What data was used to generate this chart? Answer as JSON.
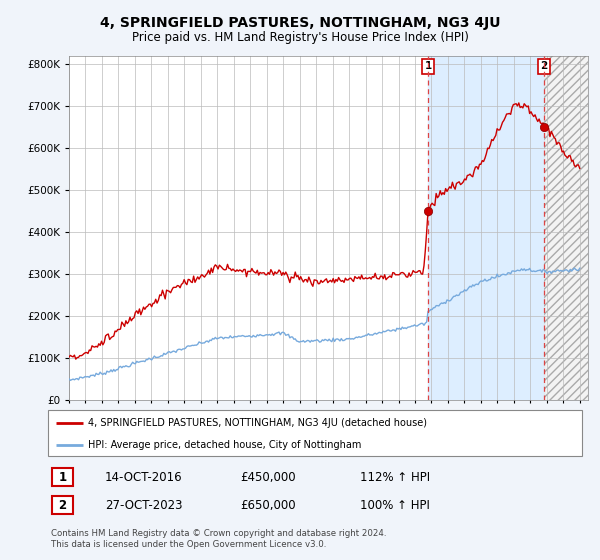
{
  "title": "4, SPRINGFIELD PASTURES, NOTTINGHAM, NG3 4JU",
  "subtitle": "Price paid vs. HM Land Registry's House Price Index (HPI)",
  "ylabel_ticks": [
    "£0",
    "£100K",
    "£200K",
    "£300K",
    "£400K",
    "£500K",
    "£600K",
    "£700K",
    "£800K"
  ],
  "ytick_values": [
    0,
    100000,
    200000,
    300000,
    400000,
    500000,
    600000,
    700000,
    800000
  ],
  "ylim": [
    0,
    820000
  ],
  "xlim_start": 1995.0,
  "xlim_end": 2026.5,
  "red_line_color": "#cc0000",
  "blue_line_color": "#77aadd",
  "vertical_line_color": "#dd4444",
  "shade_between_color": "#ddeeff",
  "marker1_date": 2016.79,
  "marker1_price": 450000,
  "marker2_date": 2023.83,
  "marker2_price": 650000,
  "legend_label_red": "4, SPRINGFIELD PASTURES, NOTTINGHAM, NG3 4JU (detached house)",
  "legend_label_blue": "HPI: Average price, detached house, City of Nottingham",
  "annotation1_date": "14-OCT-2016",
  "annotation1_price": "£450,000",
  "annotation1_hpi": "112% ↑ HPI",
  "annotation2_date": "27-OCT-2023",
  "annotation2_price": "£650,000",
  "annotation2_hpi": "100% ↑ HPI",
  "footnote": "Contains HM Land Registry data © Crown copyright and database right 2024.\nThis data is licensed under the Open Government Licence v3.0.",
  "background_color": "#f0f4fa",
  "plot_bg_color": "#ffffff"
}
